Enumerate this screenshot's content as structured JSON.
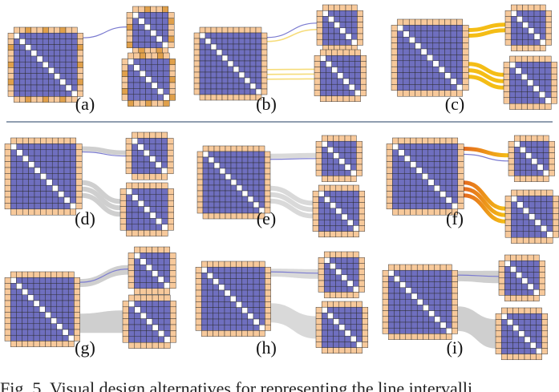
{
  "colors": {
    "matrix_cell": "#6f6fbf",
    "matrix_diagonal": "#ffffff",
    "border_cell": "#f7c99b",
    "border_cell_dark": "#e0a04b",
    "grid_line": "#2a2a2a",
    "link_thin": "#7b7bd0",
    "link_pale_yellow": "#f6dc7a",
    "link_yellow": "#f4bd16",
    "link_orange": "#e46a1e",
    "link_gray": "#cfcfcf",
    "separator": "#6c7f95"
  },
  "panels": [
    {
      "id": "a",
      "label": "(a)",
      "link_style": "thin-highlighted-borders"
    },
    {
      "id": "b",
      "label": "(b)",
      "link_style": "pale-yellow-lines"
    },
    {
      "id": "c",
      "label": "(c)",
      "link_style": "thick-yellow-bundles"
    },
    {
      "id": "d",
      "label": "(d)",
      "link_style": "gray-lines"
    },
    {
      "id": "e",
      "label": "(e)",
      "link_style": "gray-lines-light"
    },
    {
      "id": "f",
      "label": "(f)",
      "link_style": "orange-gradient-bundles"
    },
    {
      "id": "g",
      "label": "(g)",
      "link_style": "gray-ribbons"
    },
    {
      "id": "h",
      "label": "(h)",
      "link_style": "gray-ribbons-light"
    },
    {
      "id": "i",
      "label": "(i)",
      "link_style": "gray-ribbons-wide"
    }
  ],
  "caption": {
    "text": "Fig. 5. Visual design alternatives for representing the line intervalli"
  }
}
